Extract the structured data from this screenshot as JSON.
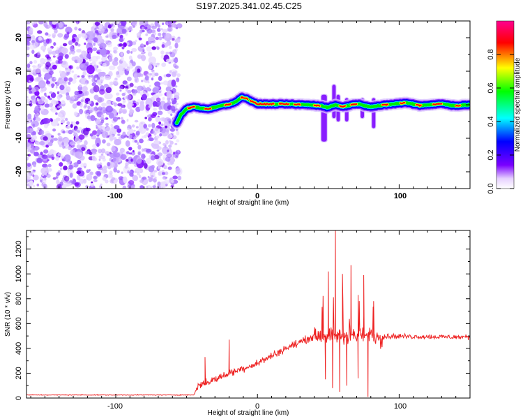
{
  "title": "S197.2025.341.02.45.C25",
  "chart_data": [
    {
      "type": "heatmap",
      "name": "spectrogram",
      "xlabel": "Height of straight line (km)",
      "ylabel": "Frequency (Hz)",
      "xlim": [
        -163,
        150
      ],
      "ylim": [
        -25,
        25
      ],
      "xticks": [
        -100,
        0,
        100
      ],
      "xtick_labels": [
        "-100",
        "0",
        "100"
      ],
      "yticks": [
        -20,
        -10,
        0,
        10,
        20
      ],
      "ytick_labels": [
        "-20",
        "-10",
        "0",
        "10",
        "20"
      ],
      "noise_region_x": [
        -163,
        -57
      ],
      "ridge_start_x": -57,
      "ridge_points": [
        {
          "x": -57,
          "y": -5.5
        },
        {
          "x": -54,
          "y": -3.0
        },
        {
          "x": -50,
          "y": -1.2
        },
        {
          "x": -45,
          "y": -0.6
        },
        {
          "x": -40,
          "y": -1.0
        },
        {
          "x": -35,
          "y": -1.3
        },
        {
          "x": -30,
          "y": -0.7
        },
        {
          "x": -25,
          "y": -0.2
        },
        {
          "x": -20,
          "y": 0.1
        },
        {
          "x": -15,
          "y": 1.0
        },
        {
          "x": -11,
          "y": 2.2
        },
        {
          "x": -8,
          "y": 2.0
        },
        {
          "x": -4,
          "y": 1.0
        },
        {
          "x": 0,
          "y": 0.2
        },
        {
          "x": 20,
          "y": 0.2
        },
        {
          "x": 35,
          "y": 0.0
        },
        {
          "x": 45,
          "y": -0.3
        },
        {
          "x": 50,
          "y": -0.8
        },
        {
          "x": 55,
          "y": 0.0
        },
        {
          "x": 60,
          "y": -0.6
        },
        {
          "x": 70,
          "y": 0.3
        },
        {
          "x": 80,
          "y": -0.6
        },
        {
          "x": 95,
          "y": 0.2
        },
        {
          "x": 105,
          "y": 0.6
        },
        {
          "x": 115,
          "y": -0.2
        },
        {
          "x": 130,
          "y": 0.3
        },
        {
          "x": 140,
          "y": -0.3
        },
        {
          "x": 150,
          "y": 0.0
        }
      ],
      "colorbar": {
        "label": "Normalized spectral amplitude",
        "range": [
          0,
          1
        ],
        "ticks": [
          0.0,
          0.2,
          0.4,
          0.6,
          0.8
        ],
        "tick_labels": [
          "0.0",
          "0.2",
          "0.4",
          "0.6",
          "0.8"
        ],
        "colors": [
          "#ffffff",
          "#7a00ff",
          "#0000ff",
          "#00ffff",
          "#00ff00",
          "#ffff00",
          "#ff0000",
          "#ff0090"
        ]
      }
    },
    {
      "type": "line",
      "name": "snr",
      "xlabel": "Height of straight line (km)",
      "ylabel": "SNR (10 * v/v)",
      "xlim": [
        -163,
        150
      ],
      "ylim": [
        0,
        1350
      ],
      "xticks": [
        -100,
        0,
        100
      ],
      "xtick_labels": [
        "-100",
        "0",
        "100"
      ],
      "yticks": [
        0,
        200,
        400,
        600,
        800,
        1000,
        1200
      ],
      "ytick_labels": [
        "0",
        "200",
        "400",
        "600",
        "800",
        "1000",
        "1200"
      ],
      "line_color": "#ee2222",
      "envelope": [
        {
          "x": -163,
          "y": 25
        },
        {
          "x": -100,
          "y": 25
        },
        {
          "x": -45,
          "y": 25
        },
        {
          "x": -42,
          "y": 100
        },
        {
          "x": -30,
          "y": 150
        },
        {
          "x": -20,
          "y": 200
        },
        {
          "x": 0,
          "y": 280
        },
        {
          "x": 20,
          "y": 400
        },
        {
          "x": 40,
          "y": 500
        },
        {
          "x": 50,
          "y": 510
        },
        {
          "x": 60,
          "y": 500
        },
        {
          "x": 80,
          "y": 500
        },
        {
          "x": 150,
          "y": 490
        }
      ],
      "spikes": [
        {
          "x": -37,
          "y": 330
        },
        {
          "x": -20,
          "y": 470
        },
        {
          "x": 50,
          "y": 1020
        },
        {
          "x": 55,
          "y": 1350
        },
        {
          "x": 60,
          "y": 1000
        },
        {
          "x": 66,
          "y": 1070
        },
        {
          "x": 71,
          "y": 830
        },
        {
          "x": 75,
          "y": 990
        },
        {
          "x": 82,
          "y": 780
        }
      ],
      "dips": [
        {
          "x": 48,
          "y": 150
        },
        {
          "x": 53,
          "y": 80
        },
        {
          "x": 58,
          "y": 50
        },
        {
          "x": 63,
          "y": 100
        },
        {
          "x": 71,
          "y": 160
        },
        {
          "x": 78,
          "y": 10
        }
      ]
    }
  ]
}
